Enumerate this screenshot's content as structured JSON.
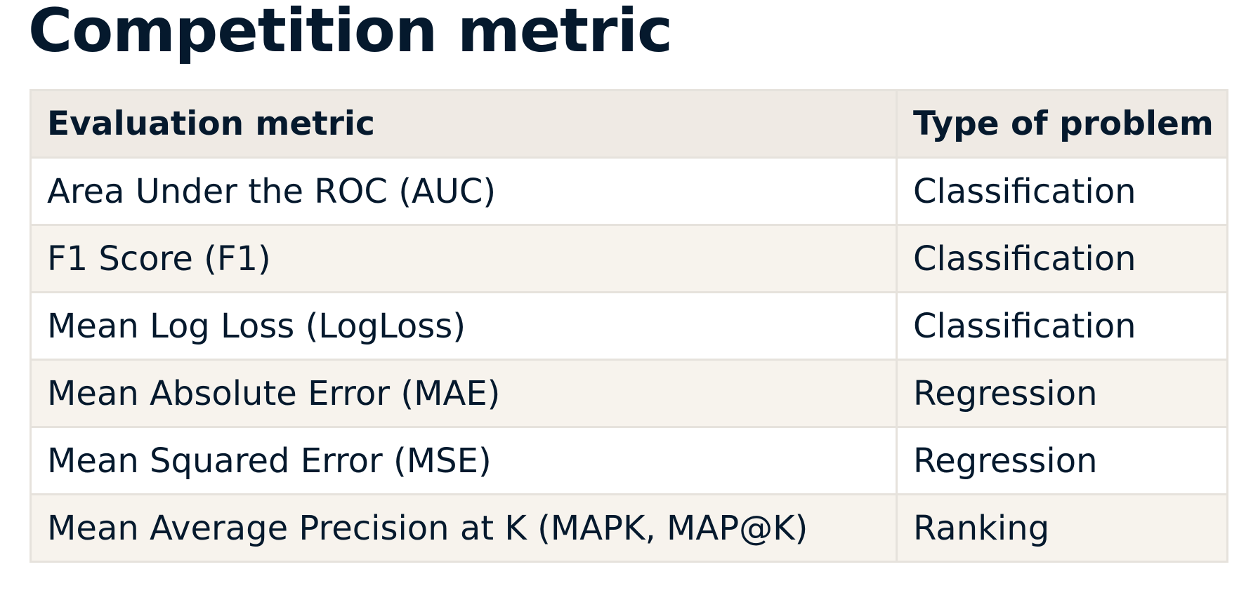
{
  "title": "Competition metric",
  "table": {
    "headers": [
      "Evaluation metric",
      "Type of problem"
    ],
    "rows": [
      [
        "Area Under the ROC (AUC)",
        "Classification"
      ],
      [
        "F1 Score (F1)",
        "Classification"
      ],
      [
        "Mean Log Loss (LogLoss)",
        "Classification"
      ],
      [
        "Mean Absolute Error (MAE)",
        "Regression"
      ],
      [
        "Mean Squared Error (MSE)",
        "Regression"
      ],
      [
        "Mean Average Precision at K (MAPK, MAP@K)",
        "Ranking"
      ]
    ]
  },
  "colors": {
    "text": "#05192d",
    "header_bg": "#efeae4",
    "stripe_bg": "#f7f3ed",
    "border": "#e6e2dc"
  }
}
